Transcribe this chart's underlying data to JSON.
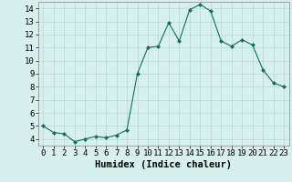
{
  "xlabel": "Humidex (Indice chaleur)",
  "x": [
    0,
    1,
    2,
    3,
    4,
    5,
    6,
    7,
    8,
    9,
    10,
    11,
    12,
    13,
    14,
    15,
    16,
    17,
    18,
    19,
    20,
    21,
    22,
    23
  ],
  "y": [
    5.0,
    4.5,
    4.4,
    3.8,
    4.0,
    4.2,
    4.1,
    4.3,
    4.7,
    9.0,
    11.0,
    11.1,
    12.9,
    11.5,
    13.9,
    14.3,
    13.8,
    11.5,
    11.1,
    11.6,
    11.2,
    9.3,
    8.3,
    8.0
  ],
  "xlim": [
    -0.5,
    23.5
  ],
  "ylim": [
    3.5,
    14.5
  ],
  "yticks": [
    4,
    5,
    6,
    7,
    8,
    9,
    10,
    11,
    12,
    13,
    14
  ],
  "xticks": [
    0,
    1,
    2,
    3,
    4,
    5,
    6,
    7,
    8,
    9,
    10,
    11,
    12,
    13,
    14,
    15,
    16,
    17,
    18,
    19,
    20,
    21,
    22,
    23
  ],
  "line_color": "#1a6b5e",
  "marker_color": "#1a6b5e",
  "bg_color": "#d6f0ee",
  "grid_color": "#b8d8d4",
  "axis_label_fontsize": 7.5,
  "tick_fontsize": 6.5
}
